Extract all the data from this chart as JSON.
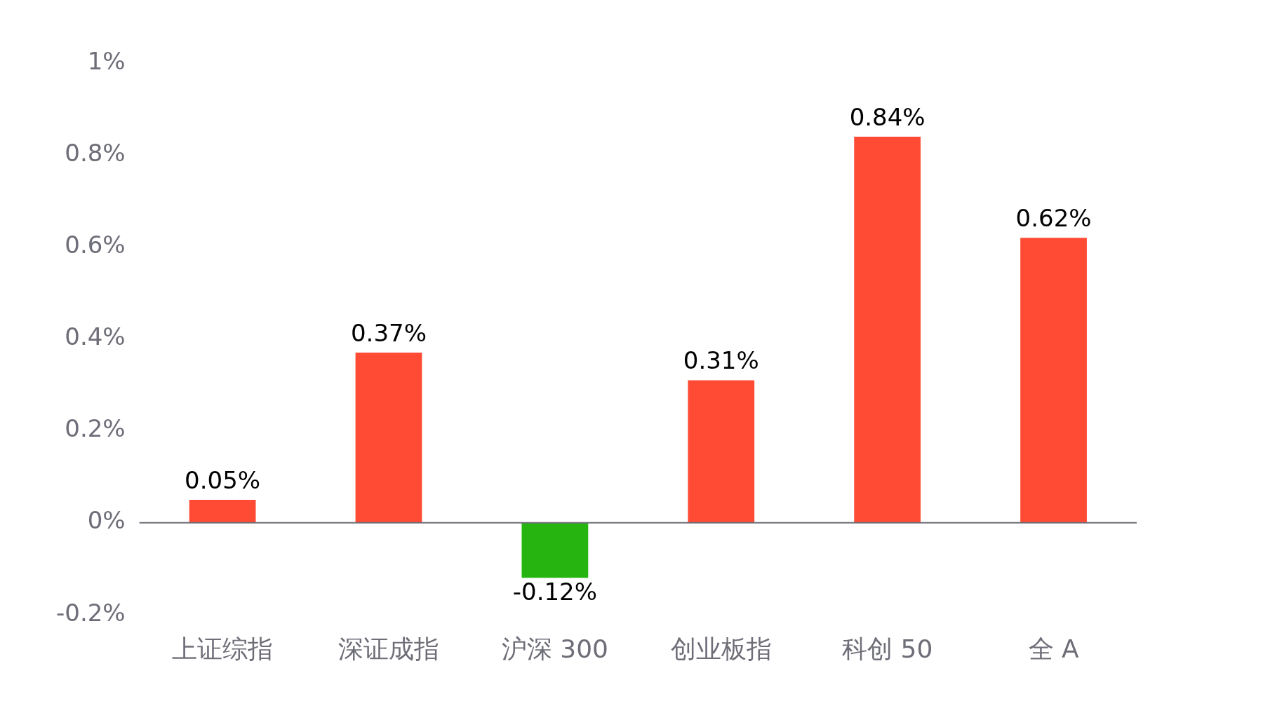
{
  "chart_data": {
    "type": "bar",
    "categories": [
      "上证综指",
      "深证成指",
      "沪深 300",
      "创业板指",
      "科创 50",
      "全 A"
    ],
    "values": [
      0.05,
      0.37,
      -0.12,
      0.31,
      0.84,
      0.62
    ],
    "colors": [
      "#ff4b33",
      "#ff4b33",
      "#26b510",
      "#ff4b33",
      "#ff4b33",
      "#ff4b33"
    ],
    "value_labels": [
      "0.05%",
      "0.37%",
      "-0.12%",
      "0.31%",
      "0.84%",
      "0.62%"
    ],
    "ylim": [
      -0.2,
      1
    ],
    "yticks": [
      {
        "value": -0.2,
        "label": "-0.2%"
      },
      {
        "value": 0,
        "label": "0%"
      },
      {
        "value": 0.2,
        "label": "0.2%"
      },
      {
        "value": 0.4,
        "label": "0.4%"
      },
      {
        "value": 0.6,
        "label": "0.6%"
      },
      {
        "value": 0.8,
        "label": "0.8%"
      },
      {
        "value": 1,
        "label": "1%"
      }
    ],
    "ref_lines": [
      {
        "axis": "y",
        "value": 0,
        "color": "#6e6e78"
      }
    ],
    "grid": false,
    "legend": false
  }
}
